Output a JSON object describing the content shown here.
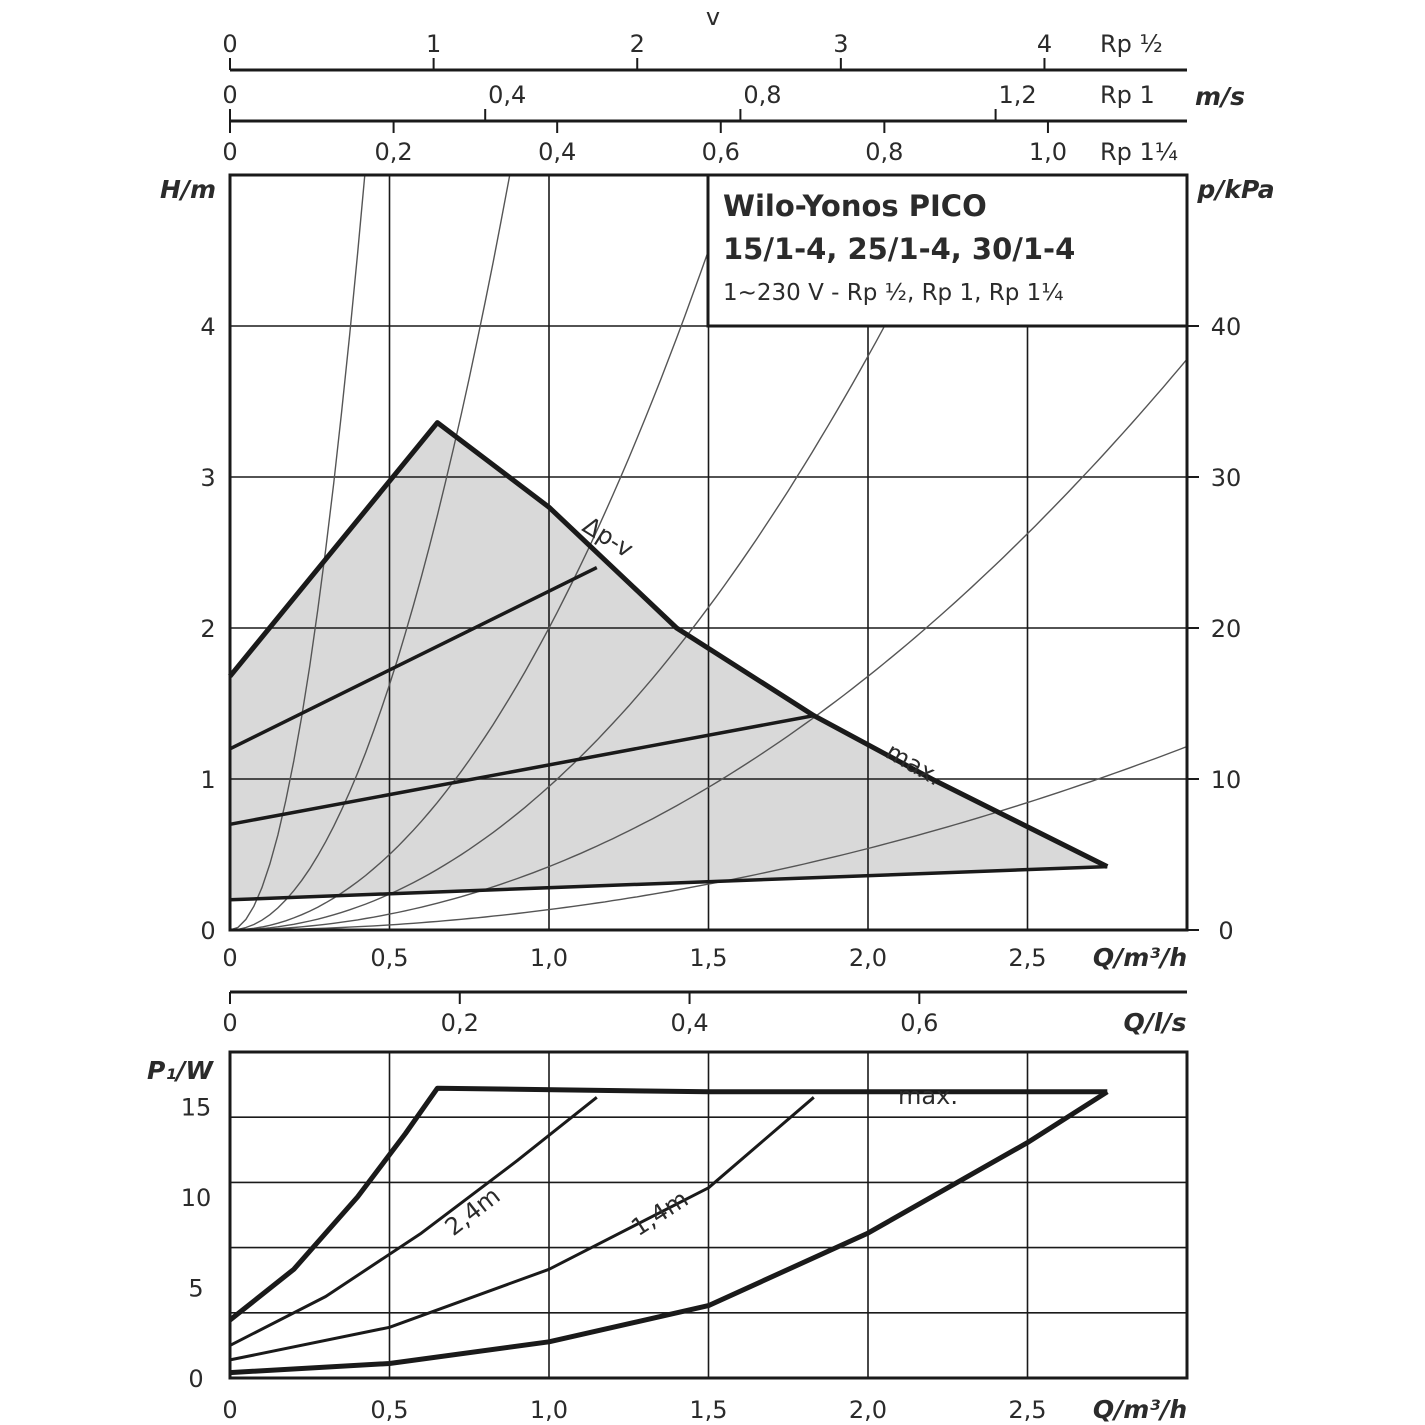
{
  "chart_data": [
    {
      "type": "line",
      "name": "head",
      "title": "Wilo-Yonos PICO",
      "models": "15/1-4, 25/1-4, 30/1-4",
      "subtitle": "1~230 V - Rp ½, Rp 1, Rp 1¼",
      "xlabel": "Q/m³/h",
      "ylabel": "H/m",
      "y2label": "p/kPa",
      "xlim": [
        0,
        3.0
      ],
      "ylim": [
        0,
        5
      ],
      "y2lim": [
        0,
        50
      ],
      "x_ticks": [
        "0",
        "0,5",
        "1,0",
        "1,5",
        "2,0",
        "2,5"
      ],
      "y_ticks": [
        "0",
        "1",
        "2",
        "3",
        "4"
      ],
      "y2_ticks": [
        "0",
        "10",
        "20",
        "30",
        "40"
      ],
      "grid": true,
      "region_color": "#d9d9d9",
      "line_color": "#1a1a1a",
      "series": [
        {
          "name": "max.",
          "x": [
            0,
            0.65,
            1.0,
            1.4,
            1.83,
            2.2,
            2.75
          ],
          "y": [
            1.68,
            3.36,
            2.8,
            2.0,
            1.42,
            1.0,
            0.42
          ]
        },
        {
          "x": [
            0,
            1.15
          ],
          "y": [
            1.2,
            2.4
          ]
        },
        {
          "x": [
            0,
            1.83
          ],
          "y": [
            0.7,
            1.42
          ]
        },
        {
          "x": [
            0,
            2.75
          ],
          "y": [
            0.2,
            0.42
          ]
        }
      ],
      "curve_labels": [
        "Δp-v",
        "max."
      ],
      "system_curves_k": [
        28,
        6.5,
        2.0,
        0.95,
        0.42,
        0.135
      ]
    },
    {
      "type": "line",
      "name": "power",
      "xlabel": "Q/m³/h",
      "ylabel": "P₁/W",
      "xlim": [
        0,
        3.0
      ],
      "ylim": [
        0,
        18
      ],
      "x_ticks": [
        "0",
        "0,5",
        "1,0",
        "1,5",
        "2,0",
        "2,5"
      ],
      "y_ticks": [
        "0",
        "5",
        "10",
        "15"
      ],
      "grid": true,
      "series": [
        {
          "name": "max.",
          "x": [
            0,
            0.2,
            0.4,
            0.55,
            0.65,
            1.5,
            2.2,
            2.75
          ],
          "y": [
            3.2,
            6.0,
            10.0,
            13.5,
            16.0,
            15.8,
            15.8,
            15.8
          ]
        },
        {
          "name": "2,4m",
          "x": [
            0,
            0.3,
            0.6,
            0.9,
            1.15
          ],
          "y": [
            1.8,
            4.5,
            8.0,
            12.0,
            15.5
          ]
        },
        {
          "name": "1,4m",
          "x": [
            0,
            0.5,
            1.0,
            1.5,
            1.83
          ],
          "y": [
            1.0,
            2.8,
            6.0,
            10.5,
            15.5
          ]
        },
        {
          "x": [
            0,
            0.5,
            1.0,
            1.5,
            2.0,
            2.5,
            2.75
          ],
          "y": [
            0.3,
            0.8,
            2.0,
            4.0,
            8.0,
            13.0,
            15.8
          ]
        }
      ],
      "curve_labels": [
        "max.",
        "2,4m",
        "1,4m"
      ]
    }
  ],
  "velocity_scales": {
    "header": "v",
    "unit": "m/s",
    "rows": [
      {
        "label": "Rp ½",
        "max": 4.7,
        "ticks": [
          "0",
          "1",
          "2",
          "3",
          "4"
        ]
      },
      {
        "label": "Rp 1",
        "max": 1.5,
        "ticks": [
          "0",
          "0,4",
          "0,8",
          "1,2"
        ]
      },
      {
        "label": "Rp 1¼",
        "max": 1.17,
        "ticks": [
          "0",
          "0,2",
          "0,4",
          "0,6",
          "0,8",
          "1,0"
        ]
      }
    ]
  },
  "flow_ls_scale": {
    "label": "Q/l/s",
    "max": 0.833,
    "ticks": [
      "0",
      "0,2",
      "0,4",
      "0,6"
    ]
  }
}
